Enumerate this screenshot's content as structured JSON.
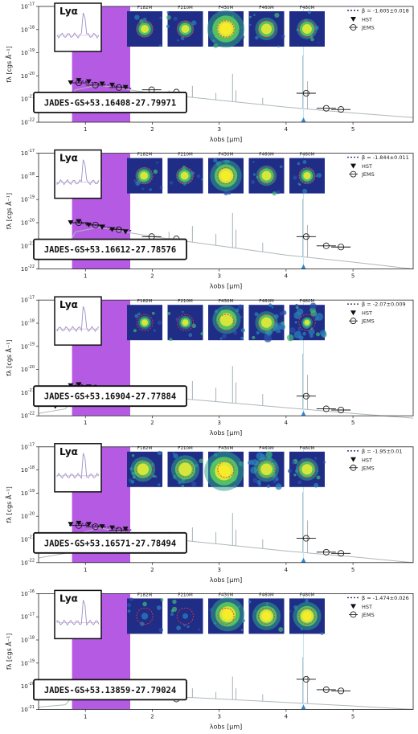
{
  "figure": {
    "x_axis_label": "λobs [μm]",
    "y_axis_label": "fλ [cgs Å⁻¹]"
  },
  "colors": {
    "spectrum": "#aeb8bd",
    "shade": "#b55be3",
    "beta_line": "#4a1f6e",
    "lya_marker": "#2f86d6",
    "cutout_bg": "#1f2d86",
    "circle": "#e8343a"
  },
  "chart_data": [
    {
      "type": "line",
      "name": "JADES-GS+53.16408-27.79971",
      "filters": [
        "F182M",
        "F210M",
        "F430M",
        "F460M",
        "F480M"
      ],
      "lya_label": "Lyα",
      "beta_label": "β = -1.605±0.018",
      "legend": [
        "HST",
        "JEMS"
      ],
      "ylim_exp": [
        -22,
        -17
      ],
      "xlim": [
        0.3,
        5.9
      ],
      "x_ticks": [
        1,
        2,
        3,
        4,
        5
      ],
      "shade_range": [
        0.8,
        1.67
      ],
      "lya_um": 4.26,
      "hst": [
        {
          "x": 0.45,
          "y": -21.3
        },
        {
          "x": 0.6,
          "y": -21.25
        },
        {
          "x": 0.78,
          "y": -20.3
        },
        {
          "x": 0.9,
          "y": -20.2
        },
        {
          "x": 1.05,
          "y": -20.25
        },
        {
          "x": 1.25,
          "y": -20.35
        },
        {
          "x": 1.4,
          "y": -20.4
        },
        {
          "x": 1.6,
          "y": -20.5
        }
      ],
      "nircam": [
        {
          "x": 0.9,
          "y": -20.3
        },
        {
          "x": 1.15,
          "y": -20.4
        },
        {
          "x": 1.5,
          "y": -20.5
        },
        {
          "x": 1.99,
          "y": -20.6
        },
        {
          "x": 2.36,
          "y": -20.7
        },
        {
          "x": 4.3,
          "y": -20.75
        },
        {
          "x": 4.6,
          "y": -21.4
        },
        {
          "x": 4.82,
          "y": -21.45
        }
      ],
      "continuum": [
        [
          0.3,
          -21.5
        ],
        [
          0.7,
          -21.3
        ],
        [
          0.85,
          -20.6
        ],
        [
          1.2,
          -20.4
        ],
        [
          2,
          -20.75
        ],
        [
          3,
          -21.05
        ],
        [
          4,
          -21.35
        ],
        [
          5,
          -21.6
        ],
        [
          5.9,
          -21.8
        ]
      ],
      "lines": [
        {
          "x": 2.25,
          "h": 0.2
        },
        {
          "x": 2.6,
          "h": 0.5
        },
        {
          "x": 2.95,
          "h": 0.3
        },
        {
          "x": 3.2,
          "h": 1.2
        },
        {
          "x": 3.25,
          "h": 0.5
        },
        {
          "x": 3.65,
          "h": 0.3
        },
        {
          "x": 4.25,
          "h": 2.3
        },
        {
          "x": 4.32,
          "h": 1.2
        }
      ],
      "beta_line": [
        [
          0.9,
          -20.2
        ],
        [
          1.7,
          -20.55
        ]
      ],
      "blobs": [
        {
          "type": "compact",
          "x": 0.5,
          "y": 0.5,
          "r": 0.15,
          "size": "small"
        },
        {
          "type": "compact",
          "x": 0.5,
          "y": 0.5,
          "r": 0.15,
          "size": "small"
        },
        {
          "type": "compact",
          "x": 0.5,
          "y": 0.5,
          "r": 0.33,
          "size": "large"
        },
        {
          "type": "compact",
          "x": 0.5,
          "y": 0.5,
          "r": 0.2,
          "size": "medium"
        },
        {
          "type": "compact",
          "x": 0.5,
          "y": 0.5,
          "r": 0.18,
          "size": "medium"
        }
      ]
    },
    {
      "type": "line",
      "name": "JADES-GS+53.16612-27.78576",
      "filters": [
        "F182M",
        "F210M",
        "F430M",
        "F460M",
        "F480M"
      ],
      "lya_label": "Lyα",
      "beta_label": "β = -1.844±0.011",
      "legend": [
        "HST",
        "JEMS"
      ],
      "ylim_exp": [
        -22,
        -17
      ],
      "xlim": [
        0.3,
        5.9
      ],
      "x_ticks": [
        1,
        2,
        3,
        4,
        5
      ],
      "shade_range": [
        0.8,
        1.67
      ],
      "lya_um": 4.26,
      "hst": [
        {
          "x": 0.5,
          "y": -20.8
        },
        {
          "x": 0.78,
          "y": -20.0
        },
        {
          "x": 0.9,
          "y": -19.95
        },
        {
          "x": 1.05,
          "y": -20.1
        },
        {
          "x": 1.25,
          "y": -20.2
        },
        {
          "x": 1.4,
          "y": -20.3
        },
        {
          "x": 1.6,
          "y": -20.4
        }
      ],
      "nircam": [
        {
          "x": 0.9,
          "y": -20.0
        },
        {
          "x": 1.15,
          "y": -20.1
        },
        {
          "x": 1.5,
          "y": -20.3
        },
        {
          "x": 1.99,
          "y": -20.6
        },
        {
          "x": 2.36,
          "y": -20.7
        },
        {
          "x": 4.3,
          "y": -20.6
        },
        {
          "x": 4.6,
          "y": -21.0
        },
        {
          "x": 4.82,
          "y": -21.05
        }
      ],
      "continuum": [
        [
          0.3,
          -21.4
        ],
        [
          0.7,
          -21.2
        ],
        [
          0.85,
          -20.4
        ],
        [
          1.2,
          -20.2
        ],
        [
          2,
          -20.6
        ],
        [
          3,
          -21.0
        ],
        [
          4,
          -21.4
        ],
        [
          5,
          -21.7
        ],
        [
          5.9,
          -22.0
        ]
      ],
      "lines": [
        {
          "x": 2.25,
          "h": 0.3
        },
        {
          "x": 2.6,
          "h": 0.7
        },
        {
          "x": 2.95,
          "h": 0.5
        },
        {
          "x": 3.2,
          "h": 1.5
        },
        {
          "x": 3.25,
          "h": 0.8
        },
        {
          "x": 3.65,
          "h": 0.4
        },
        {
          "x": 4.25,
          "h": 2.5
        },
        {
          "x": 4.32,
          "h": 1.4
        }
      ],
      "beta_line": [
        [
          0.9,
          -20.0
        ],
        [
          1.7,
          -20.35
        ]
      ],
      "blobs": [
        {
          "type": "compact",
          "x": 0.48,
          "y": 0.5,
          "r": 0.15,
          "size": "small"
        },
        {
          "type": "compact",
          "x": 0.48,
          "y": 0.5,
          "r": 0.15,
          "size": "small"
        },
        {
          "type": "compact",
          "x": 0.5,
          "y": 0.5,
          "r": 0.28,
          "size": "large"
        },
        {
          "type": "compact",
          "x": 0.5,
          "y": 0.5,
          "r": 0.18,
          "size": "medium"
        },
        {
          "type": "compact",
          "x": 0.5,
          "y": 0.5,
          "r": 0.14,
          "size": "small"
        }
      ]
    },
    {
      "type": "line",
      "name": "JADES-GS+53.16904-27.77884",
      "filters": [
        "F182M",
        "F210M",
        "F430M",
        "F460M",
        "F480M"
      ],
      "lya_label": "Lyα",
      "beta_label": "β = -2.07±0.009",
      "legend": [
        "HST",
        "JEMS"
      ],
      "ylim_exp": [
        -22,
        -17
      ],
      "xlim": [
        0.3,
        5.9
      ],
      "x_ticks": [
        1,
        2,
        3,
        4,
        5
      ],
      "shade_range": [
        0.8,
        1.67
      ],
      "lya_um": 4.26,
      "hst": [
        {
          "x": 0.55,
          "y": -21.6
        },
        {
          "x": 0.78,
          "y": -20.7
        },
        {
          "x": 0.9,
          "y": -20.65
        },
        {
          "x": 1.05,
          "y": -20.75
        },
        {
          "x": 1.25,
          "y": -20.85
        },
        {
          "x": 1.4,
          "y": -20.9
        },
        {
          "x": 1.6,
          "y": -21.0
        }
      ],
      "nircam": [
        {
          "x": 0.9,
          "y": -20.7
        },
        {
          "x": 1.15,
          "y": -20.8
        },
        {
          "x": 1.5,
          "y": -20.95
        },
        {
          "x": 1.99,
          "y": -21.1
        },
        {
          "x": 2.36,
          "y": -21.2
        },
        {
          "x": 4.3,
          "y": -21.15
        },
        {
          "x": 4.6,
          "y": -21.7
        },
        {
          "x": 4.82,
          "y": -21.75
        }
      ],
      "continuum": [
        [
          0.3,
          -21.9
        ],
        [
          0.7,
          -21.7
        ],
        [
          0.85,
          -21.1
        ],
        [
          1.2,
          -20.9
        ],
        [
          2,
          -21.15
        ],
        [
          3,
          -21.4
        ],
        [
          4,
          -21.65
        ],
        [
          5,
          -21.9
        ],
        [
          5.9,
          -22.1
        ]
      ],
      "lines": [
        {
          "x": 2.25,
          "h": 0.4
        },
        {
          "x": 2.6,
          "h": 0.8
        },
        {
          "x": 2.95,
          "h": 0.6
        },
        {
          "x": 3.2,
          "h": 1.6
        },
        {
          "x": 3.25,
          "h": 0.9
        },
        {
          "x": 3.65,
          "h": 0.5
        },
        {
          "x": 4.25,
          "h": 2.4
        },
        {
          "x": 4.32,
          "h": 1.5
        }
      ],
      "beta_line": [
        [
          0.9,
          -20.65
        ],
        [
          1.7,
          -21.0
        ]
      ],
      "blobs": [
        {
          "type": "compact",
          "x": 0.5,
          "y": 0.5,
          "r": 0.12,
          "size": "small"
        },
        {
          "type": "compact",
          "x": 0.5,
          "y": 0.5,
          "r": 0.12,
          "size": "small"
        },
        {
          "type": "extended",
          "x": 0.52,
          "y": 0.42,
          "r": 0.25,
          "size": "medium"
        },
        {
          "type": "noisy",
          "x": 0.5,
          "y": 0.5,
          "r": 0.2,
          "size": "medium"
        },
        {
          "type": "noisy",
          "x": 0.5,
          "y": 0.5,
          "r": 0.1,
          "size": "small"
        }
      ]
    },
    {
      "type": "line",
      "name": "JADES-GS+53.16571-27.78494",
      "filters": [
        "F182M",
        "F210M",
        "F430M",
        "F460M",
        "F480M"
      ],
      "lya_label": "Lyα",
      "beta_label": "β = -1.95±0.01",
      "legend": [
        "HST",
        "JEMS"
      ],
      "ylim_exp": [
        -22,
        -17
      ],
      "xlim": [
        0.3,
        5.9
      ],
      "x_ticks": [
        1,
        2,
        3,
        4,
        5
      ],
      "shade_range": [
        0.8,
        1.67
      ],
      "lya_um": 4.26,
      "hst": [
        {
          "x": 0.55,
          "y": -21.4
        },
        {
          "x": 0.78,
          "y": -20.35
        },
        {
          "x": 0.9,
          "y": -20.3
        },
        {
          "x": 1.05,
          "y": -20.35
        },
        {
          "x": 1.25,
          "y": -20.45
        },
        {
          "x": 1.4,
          "y": -20.5
        },
        {
          "x": 1.6,
          "y": -20.55
        }
      ],
      "nircam": [
        {
          "x": 0.9,
          "y": -20.4
        },
        {
          "x": 1.15,
          "y": -20.45
        },
        {
          "x": 1.5,
          "y": -20.6
        },
        {
          "x": 1.99,
          "y": -20.85
        },
        {
          "x": 2.36,
          "y": -20.95
        },
        {
          "x": 4.3,
          "y": -20.95
        },
        {
          "x": 4.6,
          "y": -21.55
        },
        {
          "x": 4.82,
          "y": -21.6
        }
      ],
      "continuum": [
        [
          0.3,
          -21.8
        ],
        [
          0.7,
          -21.6
        ],
        [
          0.85,
          -20.8
        ],
        [
          1.2,
          -20.5
        ],
        [
          2,
          -20.9
        ],
        [
          3,
          -21.2
        ],
        [
          4,
          -21.5
        ],
        [
          5,
          -21.75
        ],
        [
          5.9,
          -22.0
        ]
      ],
      "lines": [
        {
          "x": 2.25,
          "h": 0.3
        },
        {
          "x": 2.6,
          "h": 0.6
        },
        {
          "x": 2.95,
          "h": 0.5
        },
        {
          "x": 3.2,
          "h": 1.4
        },
        {
          "x": 3.25,
          "h": 0.7
        },
        {
          "x": 3.65,
          "h": 0.4
        },
        {
          "x": 4.25,
          "h": 2.6
        },
        {
          "x": 4.32,
          "h": 1.4
        }
      ],
      "beta_line": [
        [
          0.9,
          -20.3
        ],
        [
          1.7,
          -20.6
        ]
      ],
      "blobs": [
        {
          "type": "extended",
          "x": 0.45,
          "y": 0.5,
          "r": 0.22,
          "size": "medium"
        },
        {
          "type": "extended",
          "x": 0.5,
          "y": 0.5,
          "r": 0.25,
          "size": "medium"
        },
        {
          "type": "extended",
          "x": 0.45,
          "y": 0.55,
          "r": 0.35,
          "size": "large"
        },
        {
          "type": "noisy",
          "x": 0.5,
          "y": 0.5,
          "r": 0.22,
          "size": "medium"
        },
        {
          "type": "extended",
          "x": 0.5,
          "y": 0.5,
          "r": 0.2,
          "size": "medium"
        }
      ]
    },
    {
      "type": "line",
      "name": "JADES-GS+53.13859-27.79024",
      "filters": [
        "F182M",
        "F210M",
        "F430M",
        "F460M",
        "F480M"
      ],
      "lya_label": "Lyα",
      "beta_label": "β = -1.474±0.026",
      "legend": [
        "HST",
        "JEMS"
      ],
      "ylim_exp": [
        -21,
        -16
      ],
      "xlim": [
        0.3,
        5.9
      ],
      "x_ticks": [
        1,
        2,
        3,
        4,
        5
      ],
      "shade_range": [
        0.8,
        1.67
      ],
      "lya_um": 4.26,
      "hst": [
        {
          "x": 0.78,
          "y": -20.05
        },
        {
          "x": 0.9,
          "y": -20.0
        },
        {
          "x": 1.05,
          "y": -20.05
        },
        {
          "x": 1.25,
          "y": -20.1
        },
        {
          "x": 1.4,
          "y": -20.2
        },
        {
          "x": 1.6,
          "y": -20.3
        }
      ],
      "nircam": [
        {
          "x": 0.9,
          "y": -20.1
        },
        {
          "x": 1.15,
          "y": -20.15
        },
        {
          "x": 1.5,
          "y": -20.25
        },
        {
          "x": 1.99,
          "y": -20.45
        },
        {
          "x": 2.36,
          "y": -20.55
        },
        {
          "x": 4.3,
          "y": -19.7
        },
        {
          "x": 4.6,
          "y": -20.15
        },
        {
          "x": 4.82,
          "y": -20.2
        }
      ],
      "continuum": [
        [
          0.3,
          -20.9
        ],
        [
          0.7,
          -20.8
        ],
        [
          0.85,
          -20.3
        ],
        [
          1.2,
          -20.2
        ],
        [
          2,
          -20.4
        ],
        [
          3,
          -20.55
        ],
        [
          4,
          -20.7
        ],
        [
          5,
          -20.85
        ],
        [
          5.9,
          -21.0
        ]
      ],
      "lines": [
        {
          "x": 2.25,
          "h": 0.2
        },
        {
          "x": 2.6,
          "h": 0.4
        },
        {
          "x": 2.95,
          "h": 0.3
        },
        {
          "x": 3.2,
          "h": 1.0
        },
        {
          "x": 3.25,
          "h": 0.5
        },
        {
          "x": 3.65,
          "h": 0.3
        },
        {
          "x": 4.25,
          "h": 2.0
        },
        {
          "x": 4.32,
          "h": 1.2
        }
      ],
      "beta_line": [
        [
          0.9,
          -20.0
        ],
        [
          1.7,
          -20.35
        ]
      ],
      "blobs": [
        {
          "type": "faint",
          "x": 0.5,
          "y": 0.5,
          "r": 0.06,
          "size": "small"
        },
        {
          "type": "faint",
          "x": 0.5,
          "y": 0.5,
          "r": 0.05,
          "size": "small"
        },
        {
          "type": "compact",
          "x": 0.55,
          "y": 0.45,
          "r": 0.3,
          "size": "large"
        },
        {
          "type": "compact",
          "x": 0.5,
          "y": 0.5,
          "r": 0.25,
          "size": "large"
        },
        {
          "type": "compact",
          "x": 0.5,
          "y": 0.5,
          "r": 0.25,
          "size": "large"
        }
      ]
    }
  ]
}
